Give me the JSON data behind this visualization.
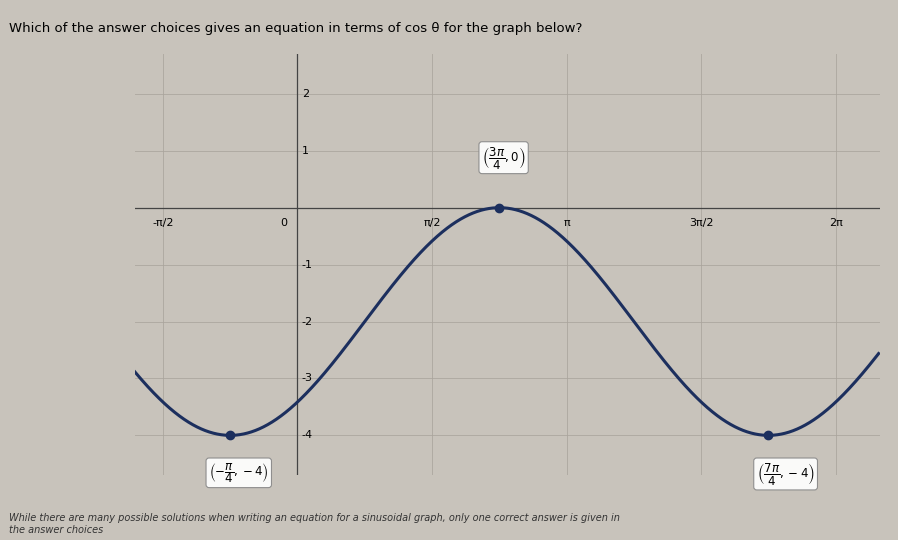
{
  "title": "Which of the answer choices gives an equation in terms of cos θ for the graph below?",
  "subtitle": "While there are many possible solutions when writing an equation for a sinusoidal graph, only one correct answer is given in\nthe answer choices",
  "xlim": [
    -1.9,
    6.8
  ],
  "ylim": [
    -4.7,
    2.7
  ],
  "xticks": [
    -1.5707963,
    0,
    1.5707963,
    3.1415926,
    4.7123889,
    6.2831853
  ],
  "xtick_labels": [
    "-π/2",
    "0",
    "π/2",
    "π",
    "3π/2",
    "2π"
  ],
  "yticks": [
    -4,
    -3,
    -2,
    -1,
    1,
    2
  ],
  "amplitude": 2,
  "midline": -2,
  "phase_shift": 2.3561944887,
  "curve_color": "#1c2f5e",
  "curve_linewidth": 2.2,
  "point_min1": [
    -0.7853981634,
    -4
  ],
  "point_max": [
    2.3561944887,
    0
  ],
  "point_min2": [
    5.4977871437,
    -4
  ],
  "bg_color": "#c8c3bb",
  "plot_bg_color": "#c8c3bb",
  "grid_color": "#aaa49c",
  "grid_alpha": 0.8,
  "dot_color": "#1c2f5e",
  "dot_size": 6
}
